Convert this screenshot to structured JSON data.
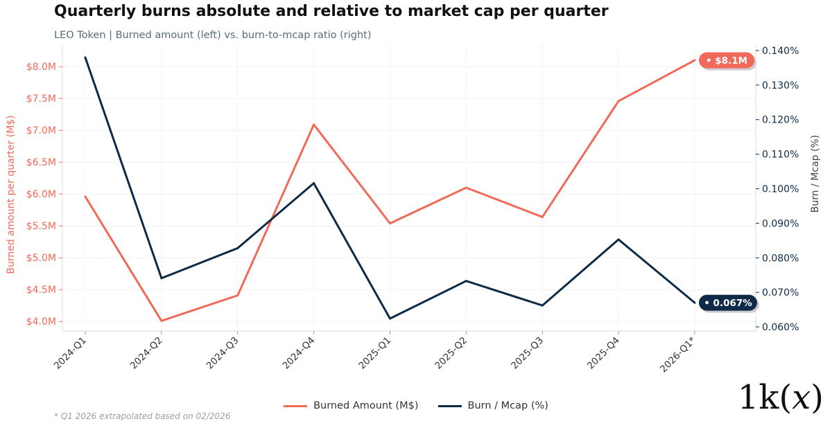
{
  "header": {
    "title": "Quarterly burns absolute and relative to market cap per quarter",
    "subtitle": "LEO Token  |  Burned amount (left) vs. burn-to-mcap ratio (right)"
  },
  "chart_data": {
    "type": "line",
    "categories": [
      "2024-Q1",
      "2024-Q2",
      "2024-Q3",
      "2024-Q4",
      "2025-Q1",
      "2025-Q2",
      "2025-Q3",
      "2025-Q4",
      "2026-Q1*"
    ],
    "series": [
      {
        "name": "Burned Amount (M$)",
        "axis": "left",
        "color": "#f0695a",
        "values": [
          5.96,
          4.01,
          4.41,
          7.09,
          5.54,
          6.1,
          5.64,
          7.46,
          8.1
        ],
        "end_label": "• $8.1M"
      },
      {
        "name": "Burn / Mcap (%)",
        "axis": "right",
        "color": "#0e2a47",
        "values": [
          0.138,
          0.0741,
          0.0828,
          0.1016,
          0.0624,
          0.0733,
          0.0662,
          0.0853,
          0.067
        ],
        "end_label": "• 0.067%"
      }
    ],
    "y_left": {
      "label": "Burned amount per quarter (M$)",
      "range": [
        3.85,
        8.35
      ],
      "ticks": [
        4.0,
        4.5,
        5.0,
        5.5,
        6.0,
        6.5,
        7.0,
        7.5,
        8.0
      ],
      "tick_labels": [
        "$4.0M",
        "$4.5M",
        "$5.0M",
        "$5.5M",
        "$6.0M",
        "$6.5M",
        "$7.0M",
        "$7.5M",
        "$8.0M"
      ]
    },
    "y_right": {
      "label": "Burn / Mcap (%)",
      "range": [
        0.0588,
        0.1418
      ],
      "ticks": [
        0.06,
        0.07,
        0.08,
        0.09,
        0.1,
        0.11,
        0.12,
        0.13,
        0.14
      ],
      "tick_labels": [
        "0.060%",
        "0.070%",
        "0.080%",
        "0.090%",
        "0.100%",
        "0.110%",
        "0.120%",
        "0.130%",
        "0.140%"
      ]
    },
    "grid": true,
    "legend_position": "bottom-center"
  },
  "footnote": "* Q1 2026 extrapolated based on 02/2026",
  "brand": {
    "prefix": "1k(",
    "var": "x",
    "suffix": ")"
  }
}
